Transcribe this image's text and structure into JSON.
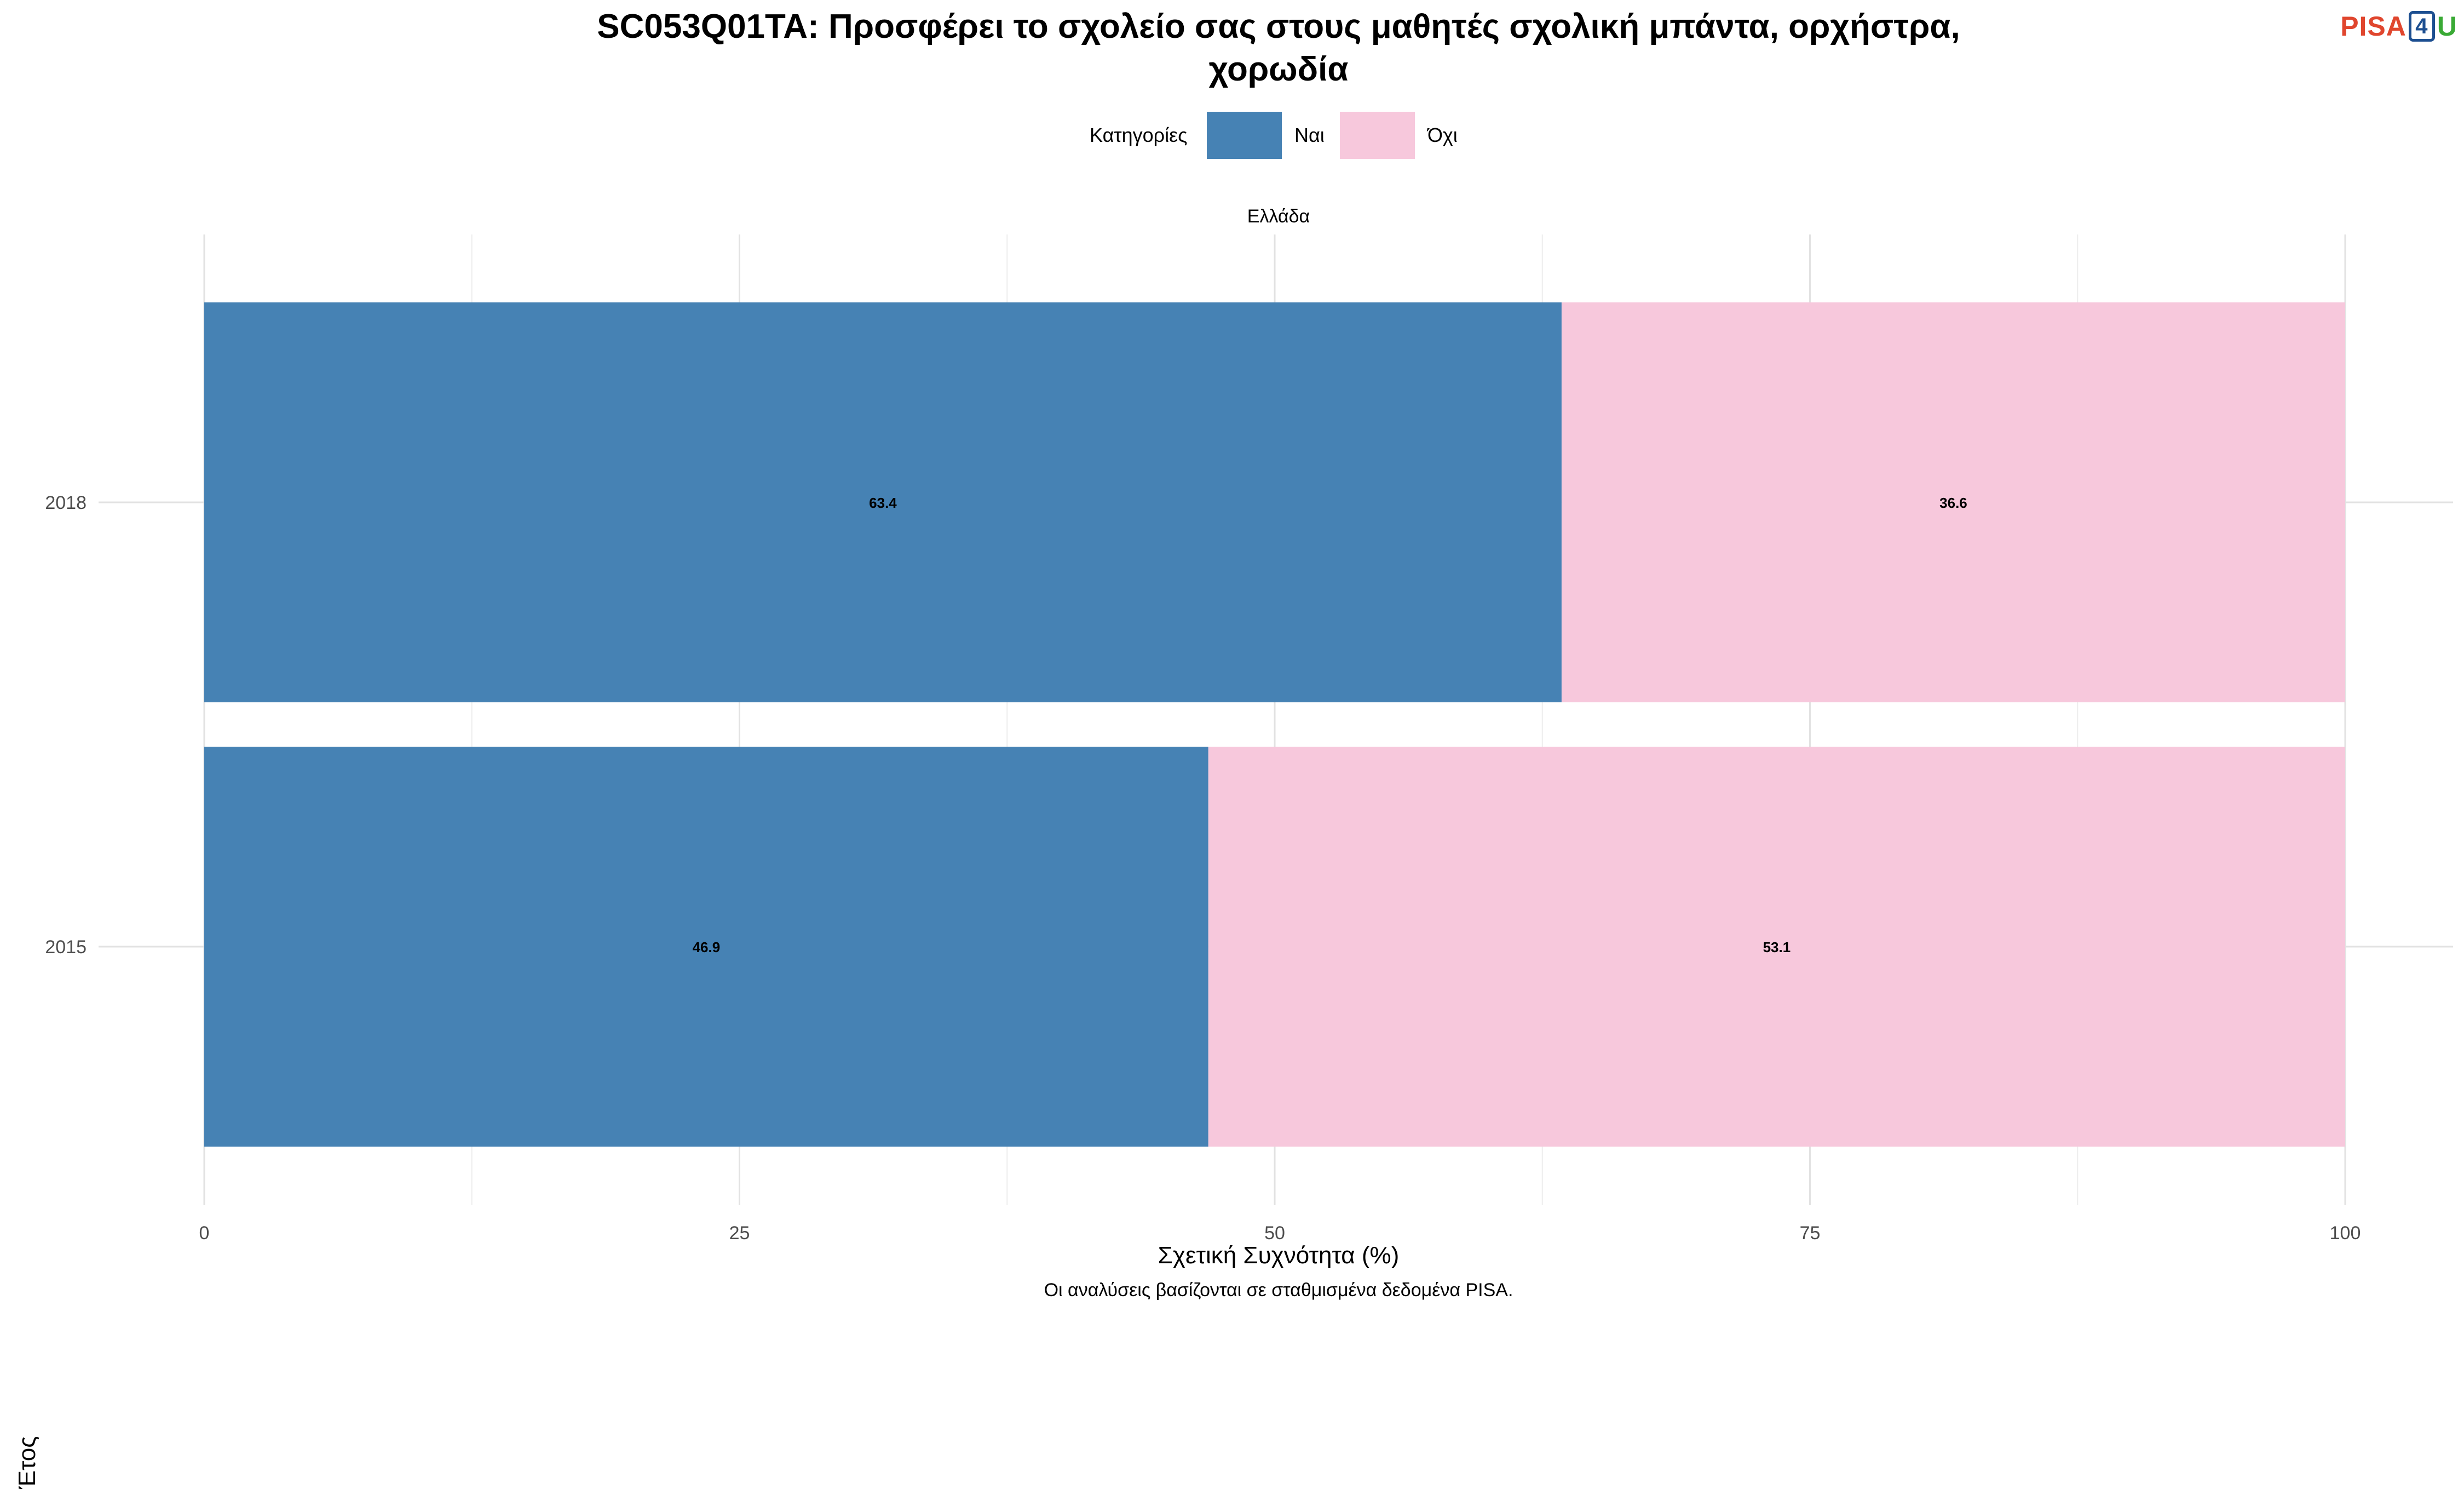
{
  "title_lines": [
    "SC053Q01TA: Προσφέρει το σχολείο σας στους μαθητές σχολική μπάντα, ορχήστρα,",
    "χορωδία"
  ],
  "logo": {
    "part1": "PISA",
    "part2": "4",
    "part3": "U"
  },
  "legend": {
    "title": "Κατηγορίες",
    "items": [
      "Ναι",
      "Όχι"
    ]
  },
  "facet_label": "Ελλάδα",
  "caption": "Οι αναλύσεις βασίζονται σε σταθμισμένα δεδομένα PISA.",
  "chart_data": {
    "type": "bar",
    "orientation": "horizontal",
    "stacked": true,
    "title": "SC053Q01TA: Προσφέρει το σχολείο σας στους μαθητές σχολική μπάντα, ορχήστρα, χορωδία",
    "xlabel": "Σχετική Συχνότητα (%)",
    "ylabel": "Έτος",
    "categories": [
      "2018",
      "2015"
    ],
    "series": [
      {
        "name": "Ναι",
        "values": [
          63.4,
          46.9
        ],
        "color": "#4682b4"
      },
      {
        "name": "Όχι",
        "values": [
          36.6,
          53.1
        ],
        "color": "#f7c8dc"
      }
    ],
    "xlim": [
      0,
      100
    ],
    "x_ticks": [
      0,
      25,
      50,
      75,
      100
    ],
    "grid": true,
    "legend_position": "top"
  }
}
